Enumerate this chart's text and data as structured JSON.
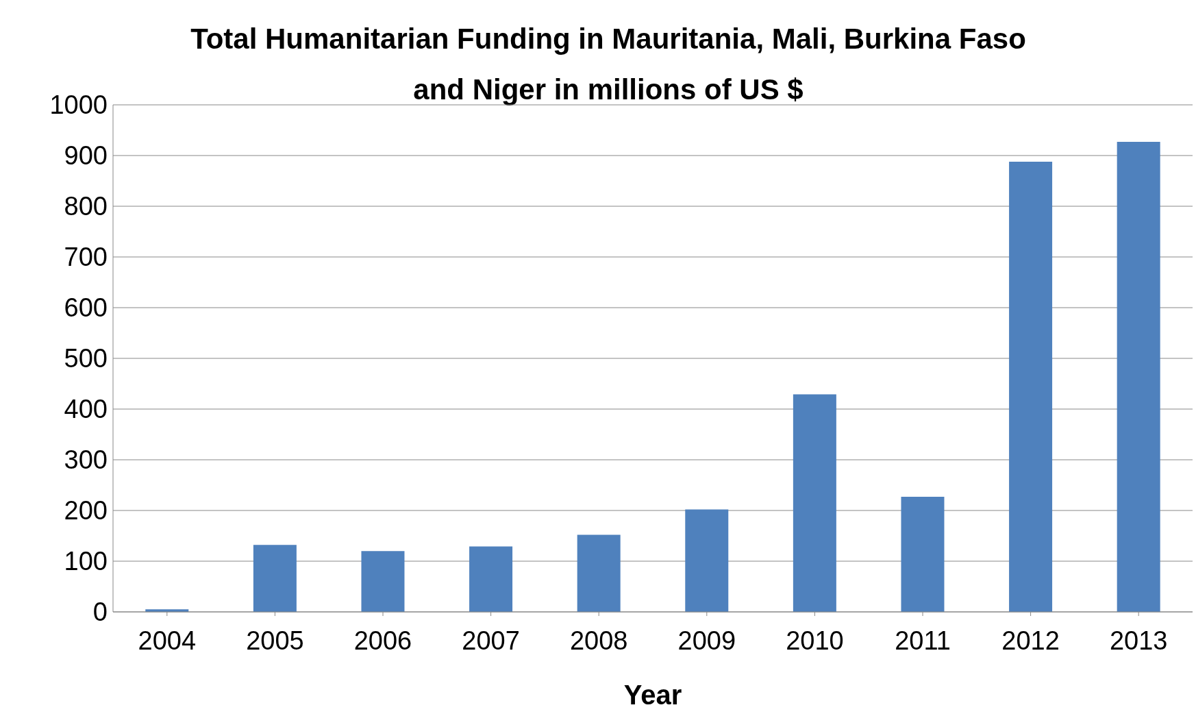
{
  "chart_data": {
    "type": "bar",
    "title": "Total Humanitarian Funding in Mauritania, Mali, Burkina Faso and Niger in millions of US $",
    "xlabel": "Year",
    "categories": [
      "2004",
      "2005",
      "2006",
      "2007",
      "2008",
      "2009",
      "2010",
      "2011",
      "2012",
      "2013"
    ],
    "values": [
      5,
      132,
      120,
      129,
      152,
      202,
      429,
      227,
      888,
      927
    ],
    "color": "#4f81bd",
    "ylim": [
      0,
      1000
    ],
    "yticks": [
      0,
      100,
      200,
      300,
      400,
      500,
      600,
      700,
      800,
      900,
      1000
    ],
    "grid": "y"
  }
}
